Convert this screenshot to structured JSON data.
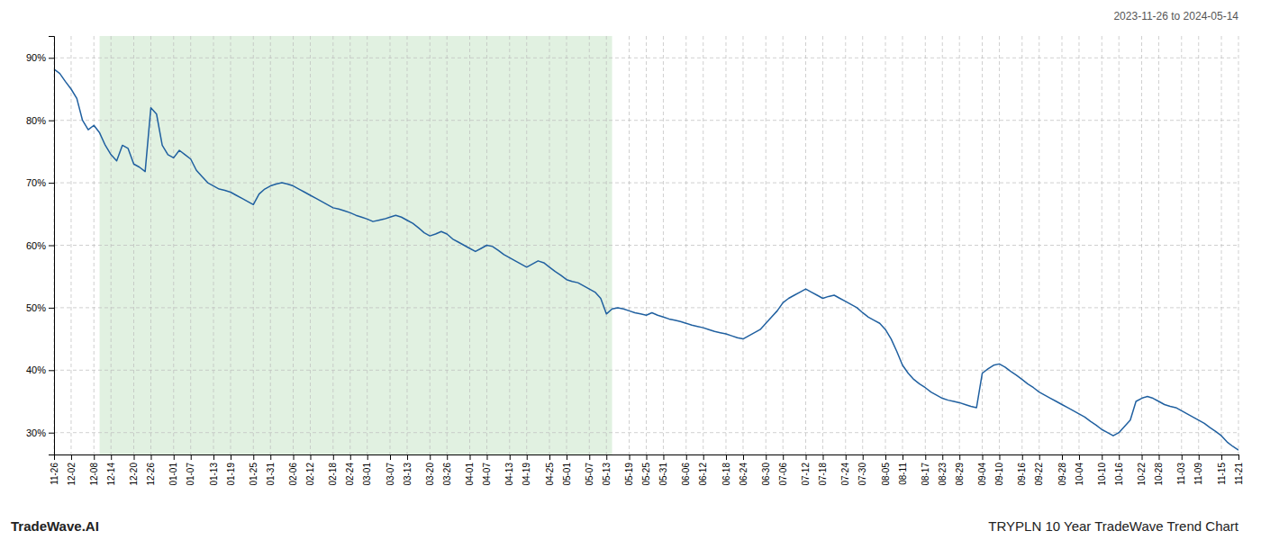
{
  "chart_data": {
    "type": "line",
    "title": "2023-11-26 to 2024-05-14",
    "annotations": [
      "TradeWave.AI",
      "TRYPLN 10 Year TradeWave Trend Chart"
    ],
    "categories": [
      "11-26",
      null,
      null,
      "12-02",
      null,
      null,
      null,
      "12-08",
      null,
      null,
      "12-14",
      null,
      null,
      null,
      "12-20",
      null,
      null,
      "12-26",
      null,
      null,
      null,
      "01-01",
      null,
      null,
      "01-07",
      null,
      null,
      null,
      "01-13",
      null,
      null,
      "01-19",
      null,
      null,
      null,
      "01-25",
      null,
      null,
      "01-31",
      null,
      null,
      null,
      "02-06",
      null,
      null,
      "02-12",
      null,
      null,
      null,
      "02-18",
      null,
      null,
      "02-24",
      null,
      null,
      "03-01",
      null,
      null,
      null,
      "03-07",
      null,
      null,
      "03-13",
      null,
      null,
      null,
      "03-20",
      null,
      null,
      "03-26",
      null,
      null,
      null,
      "04-01",
      null,
      null,
      "04-07",
      null,
      null,
      null,
      "04-13",
      null,
      null,
      "04-19",
      null,
      null,
      null,
      "04-25",
      null,
      null,
      "05-01",
      null,
      null,
      null,
      "05-07",
      null,
      null,
      "05-13",
      null,
      null,
      null,
      "05-19",
      null,
      null,
      "05-25",
      null,
      null,
      "05-31",
      null,
      null,
      null,
      "06-06",
      null,
      null,
      "06-12",
      null,
      null,
      null,
      "06-18",
      null,
      null,
      "06-24",
      null,
      null,
      null,
      "06-30",
      null,
      null,
      "07-06",
      null,
      null,
      null,
      "07-12",
      null,
      null,
      "07-18",
      null,
      null,
      null,
      "07-24",
      null,
      null,
      "07-30",
      null,
      null,
      null,
      "08-05",
      null,
      null,
      "08-11",
      null,
      null,
      null,
      "08-17",
      null,
      null,
      "08-23",
      null,
      null,
      "08-29",
      null,
      null,
      null,
      "09-04",
      null,
      null,
      "09-10",
      null,
      null,
      null,
      "09-16",
      null,
      null,
      "09-22",
      null,
      null,
      null,
      "09-28",
      null,
      null,
      "10-04",
      null,
      null,
      null,
      "10-10",
      null,
      null,
      "10-16",
      null,
      null,
      null,
      "10-22",
      null,
      null,
      "10-28",
      null,
      null,
      null,
      "11-03",
      null,
      null,
      "11-09",
      null,
      null,
      null,
      "11-15",
      null,
      null,
      "11-21"
    ],
    "values": [
      0.882,
      0.875,
      0.862,
      0.85,
      0.835,
      0.8,
      0.785,
      0.792,
      0.78,
      0.76,
      0.745,
      0.735,
      0.76,
      0.755,
      0.73,
      0.725,
      0.718,
      0.82,
      0.81,
      0.76,
      0.745,
      0.74,
      0.752,
      0.745,
      0.738,
      0.72,
      0.71,
      0.7,
      0.695,
      0.69,
      0.688,
      0.685,
      0.68,
      0.675,
      0.67,
      0.665,
      0.682,
      0.69,
      0.695,
      0.698,
      0.7,
      0.698,
      0.695,
      0.69,
      0.685,
      0.68,
      0.675,
      0.67,
      0.665,
      0.66,
      0.658,
      0.655,
      0.652,
      0.648,
      0.645,
      0.642,
      0.638,
      0.64,
      0.642,
      0.645,
      0.648,
      0.645,
      0.64,
      0.635,
      0.628,
      0.62,
      0.615,
      0.618,
      0.622,
      0.618,
      0.61,
      0.605,
      0.6,
      0.595,
      0.59,
      0.595,
      0.6,
      0.598,
      0.592,
      0.585,
      0.58,
      0.575,
      0.57,
      0.565,
      0.57,
      0.575,
      0.572,
      0.565,
      0.558,
      0.552,
      0.545,
      0.542,
      0.54,
      0.535,
      0.53,
      0.525,
      0.515,
      0.49,
      0.498,
      0.5,
      0.498,
      0.495,
      0.492,
      0.49,
      0.488,
      0.492,
      0.488,
      0.485,
      0.482,
      0.48,
      0.478,
      0.475,
      0.472,
      0.47,
      0.468,
      0.465,
      0.462,
      0.46,
      0.458,
      0.455,
      0.452,
      0.45,
      0.455,
      0.46,
      0.465,
      0.475,
      0.485,
      0.495,
      0.508,
      0.515,
      0.52,
      0.525,
      0.53,
      0.525,
      0.52,
      0.515,
      0.518,
      0.52,
      0.515,
      0.51,
      0.505,
      0.5,
      0.492,
      0.485,
      0.48,
      0.475,
      0.465,
      0.45,
      0.43,
      0.408,
      0.395,
      0.385,
      0.378,
      0.372,
      0.365,
      0.36,
      0.355,
      0.352,
      0.35,
      0.348,
      0.345,
      0.342,
      0.34,
      0.395,
      0.402,
      0.408,
      0.41,
      0.405,
      0.398,
      0.392,
      0.385,
      0.378,
      0.372,
      0.365,
      0.36,
      0.355,
      0.35,
      0.345,
      0.34,
      0.335,
      0.33,
      0.325,
      0.318,
      0.312,
      0.305,
      0.3,
      0.295,
      0.3,
      0.31,
      0.32,
      0.35,
      0.355,
      0.358,
      0.355,
      0.35,
      0.345,
      0.342,
      0.34,
      0.335,
      0.33,
      0.325,
      0.32,
      0.315,
      0.308,
      0.302,
      0.295,
      0.285,
      0.278,
      0.272
    ],
    "color": "#2060a0",
    "shaded_range": {
      "start": 8,
      "end": 98,
      "color": "#c8e6c8"
    },
    "ylim": [
      0.265,
      0.935
    ],
    "yticks": [
      {
        "value": 0.3,
        "label": "30%"
      },
      {
        "value": 0.4,
        "label": "40%"
      },
      {
        "value": 0.5,
        "label": "50%"
      },
      {
        "value": 0.6,
        "label": "60%"
      },
      {
        "value": 0.7,
        "label": "70%"
      },
      {
        "value": 0.8,
        "label": "80%"
      },
      {
        "value": 0.9,
        "label": "90%"
      }
    ],
    "grid": true
  }
}
